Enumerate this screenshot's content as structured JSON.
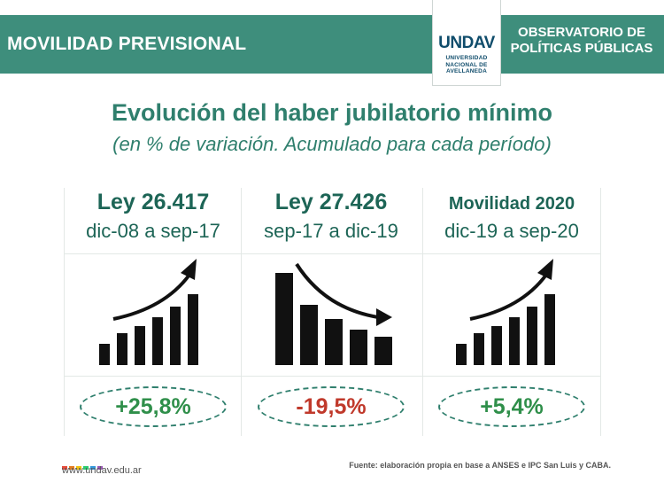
{
  "header": {
    "left_title": "MOVILIDAD PREVISIONAL",
    "right_title": "OBSERVATORIO DE POLÍTICAS PÚBLICAS",
    "logo": {
      "mark": "UNDAV",
      "subtitle": "UNIVERSIDAD NACIONAL DE AVELLANEDA"
    },
    "band_color": "#3e8e7c"
  },
  "title": "Evolución del haber jubilatorio mínimo",
  "subtitle": "(en % de variación. Acumulado para cada período)",
  "panels": [
    {
      "law": "Ley 26.417",
      "period": "dic-08 a sep-17",
      "trend_icon": "rising-bars-arrow-icon",
      "value": "+25,8%",
      "value_color": "#2f8f4a"
    },
    {
      "law": "Ley 27.426",
      "period": "sep-17 a dic-19",
      "trend_icon": "falling-bars-arrow-icon",
      "value": "-19,5%",
      "value_color": "#c0392b"
    },
    {
      "law": "Movilidad 2020",
      "period": "dic-19 a sep-20",
      "trend_icon": "rising-bars-arrow-icon",
      "value": "+5,4%",
      "value_color": "#2f8f4a"
    }
  ],
  "footer": {
    "url": "www.undav.edu.ar",
    "source": "Fuente: elaboración propia en base a ANSES e IPC San Luis y CABA."
  }
}
